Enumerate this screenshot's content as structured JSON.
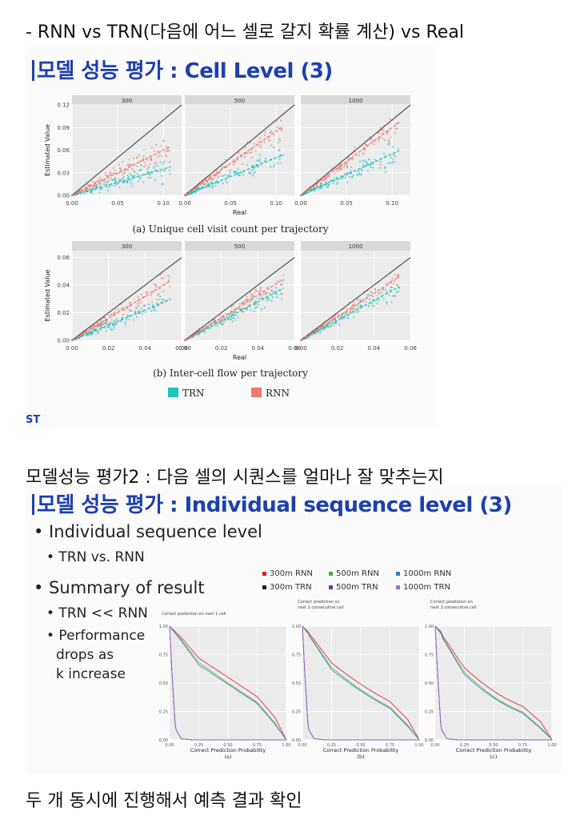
{
  "notes": {
    "top": "- RNN vs TRN(다음에 어느 셀로 갈지 확률 계산) vs Real",
    "middle": "모델성능 평가2 : 다음 셀의 시퀀스를 얼마나 잘 맞추는지",
    "bottom": "두 개 동시에 진행해서 예측 결과 확인"
  },
  "slide1": {
    "title": "모델 성능 평가 : Cell Level (3)",
    "footer_logo": "ST",
    "legend": [
      {
        "name": "TRN",
        "color": "#1fc3c0"
      },
      {
        "name": "RNN",
        "color": "#f07a72"
      }
    ],
    "rows": [
      {
        "caption": "(a) Unique cell visit count per trajectory",
        "ylabel": "Estimated Value",
        "xlabel": "Real",
        "yticks": [
          "0.00",
          "0.03",
          "0.06",
          "0.09",
          "0.12"
        ],
        "xticks": [
          "0.00",
          "0.05",
          "0.10"
        ],
        "xlim": [
          0,
          0.12
        ],
        "ylim": [
          0,
          0.12
        ],
        "facets": [
          "300",
          "500",
          "1000"
        ],
        "fit_slopes": {
          "TRN": [
            0.35,
            0.5,
            0.55
          ],
          "RNN": [
            0.6,
            0.85,
            0.9
          ]
        }
      },
      {
        "caption": "(b) Inter-cell flow per trajectory",
        "ylabel": "Estimated Value",
        "xlabel": "Real",
        "yticks": [
          "0.00",
          "0.02",
          "0.04",
          "0.06"
        ],
        "xticks": [
          "0.00",
          "0.02",
          "0.04",
          "0.06"
        ],
        "xlim": [
          0,
          0.06
        ],
        "ylim": [
          0,
          0.065
        ],
        "facets": [
          "300",
          "500",
          "1000"
        ],
        "fit_slopes": {
          "TRN": [
            0.55,
            0.7,
            0.72
          ],
          "RNN": [
            0.8,
            0.82,
            0.85
          ]
        }
      }
    ]
  },
  "slide2": {
    "title": "모델 성능 평가 : Individual sequence level (3)",
    "bullets": [
      {
        "level": 1,
        "text": "Individual sequence level"
      },
      {
        "level": 2,
        "text": "TRN vs. RNN"
      },
      {
        "level": 1,
        "text": "Summary of result"
      },
      {
        "level": 2,
        "text": "TRN << RNN"
      },
      {
        "level": 2,
        "text": "Performance"
      },
      {
        "level": 3,
        "text": "drops as"
      },
      {
        "level": 3,
        "text": "k increase"
      }
    ],
    "legend": [
      {
        "name": "300m RNN",
        "color": "#e41a1c"
      },
      {
        "name": "500m RNN",
        "color": "#4daf4a"
      },
      {
        "name": "1000m RNN",
        "color": "#377eb8"
      },
      {
        "name": "300m TRN",
        "color": "#222222"
      },
      {
        "name": "500m TRN",
        "color": "#5e3c99"
      },
      {
        "name": "1000m TRN",
        "color": "#a06bd4"
      }
    ],
    "xlabel": "Correct Prediction Probability",
    "xticks": [
      "0.00",
      "0.25",
      "0.50",
      "0.75",
      "1.00"
    ],
    "yticks": [
      "0.00",
      "0.25",
      "0.50",
      "0.75",
      "1.00"
    ],
    "panels": [
      {
        "subtitle": "Correct prediction on next 1 cell",
        "caption": "(a)"
      },
      {
        "subtitle": "Correct prediction on next 2 consecutive cell",
        "caption": "(b)"
      },
      {
        "subtitle": "Correct prediction on next 3 consecutive cell",
        "caption": "(c)"
      }
    ]
  },
  "chart_data": [
    {
      "type": "scatter",
      "title": "(a) Unique cell visit count per trajectory",
      "xlabel": "Real",
      "ylabel": "Estimated Value",
      "facets": [
        "300",
        "500",
        "1000"
      ],
      "xlim": [
        0,
        0.12
      ],
      "ylim": [
        0,
        0.12
      ],
      "series": [
        {
          "name": "TRN",
          "fit_slope_by_facet": [
            0.35,
            0.5,
            0.55
          ]
        },
        {
          "name": "RNN",
          "fit_slope_by_facet": [
            0.6,
            0.85,
            0.9
          ]
        }
      ]
    },
    {
      "type": "scatter",
      "title": "(b) Inter-cell flow per trajectory",
      "xlabel": "Real",
      "ylabel": "Estimated Value",
      "facets": [
        "300",
        "500",
        "1000"
      ],
      "xlim": [
        0,
        0.06
      ],
      "ylim": [
        0,
        0.065
      ],
      "series": [
        {
          "name": "TRN",
          "fit_slope_by_facet": [
            0.55,
            0.7,
            0.72
          ]
        },
        {
          "name": "RNN",
          "fit_slope_by_facet": [
            0.8,
            0.82,
            0.85
          ]
        }
      ]
    },
    {
      "type": "line",
      "xlabel": "Correct Prediction Probability",
      "xlim": [
        0,
        1
      ],
      "ylim": [
        0,
        1
      ],
      "series": [
        {
          "name": "300m RNN",
          "values_at_x": {
            "x": [
              0,
              0.1,
              0.25,
              0.5,
              0.75,
              0.9,
              1.0
            ],
            "y": [
              1.0,
              0.9,
              0.72,
              0.55,
              0.38,
              0.2,
              0.0
            ]
          }
        },
        {
          "name": "500m RNN",
          "values_at_x": {
            "x": [
              0,
              0.1,
              0.25,
              0.5,
              0.75,
              0.9,
              1.0
            ],
            "y": [
              1.0,
              0.88,
              0.68,
              0.5,
              0.33,
              0.15,
              0.0
            ]
          }
        },
        {
          "name": "1000m RNN",
          "values_at_x": {
            "x": [
              0,
              0.1,
              0.25,
              0.5,
              0.75,
              0.9,
              1.0
            ],
            "y": [
              1.0,
              0.87,
              0.66,
              0.49,
              0.32,
              0.14,
              0.0
            ]
          }
        },
        {
          "name": "300m TRN",
          "values_at_x": {
            "x": [
              0,
              0.02,
              0.05,
              0.1,
              0.2,
              1.0
            ],
            "y": [
              1.0,
              0.6,
              0.1,
              0.01,
              0.0,
              0.0
            ]
          }
        },
        {
          "name": "500m TRN",
          "values_at_x": {
            "x": [
              0,
              0.02,
              0.05,
              0.1,
              0.2,
              1.0
            ],
            "y": [
              1.0,
              0.6,
              0.1,
              0.01,
              0.0,
              0.0
            ]
          }
        },
        {
          "name": "1000m TRN",
          "values_at_x": {
            "x": [
              0,
              0.02,
              0.05,
              0.1,
              0.2,
              1.0
            ],
            "y": [
              1.0,
              0.6,
              0.1,
              0.01,
              0.0,
              0.0
            ]
          }
        }
      ]
    }
  ]
}
